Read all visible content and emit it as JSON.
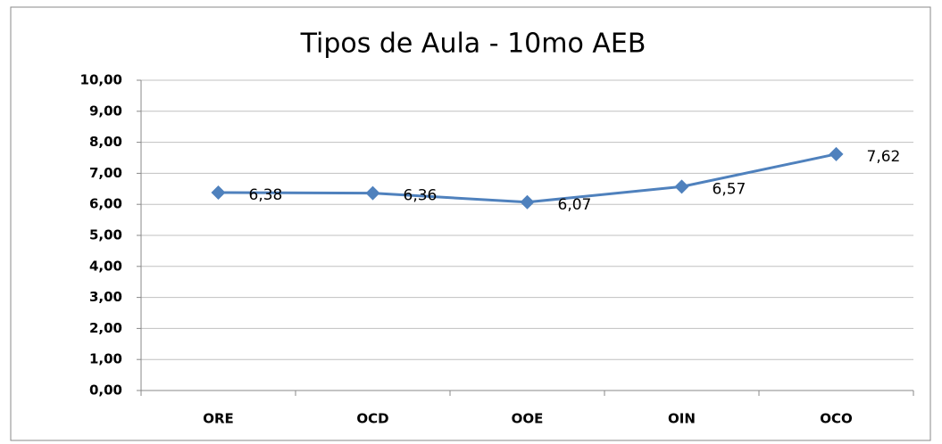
{
  "chart_data": {
    "type": "line",
    "title": "Tipos de Aula - 10mo AEB",
    "categories": [
      "ORE",
      "OCD",
      "OOE",
      "OIN",
      "OCO"
    ],
    "series": [
      {
        "name": "Tipos de Aula - 10mo AEB",
        "color": "#4f81bd",
        "values": [
          6.38,
          6.36,
          6.07,
          6.57,
          7.62
        ],
        "value_labels": [
          "6,38",
          "6,36",
          "6,07",
          "6,57",
          "7,62"
        ]
      }
    ],
    "ylim": [
      0,
      10
    ],
    "yticks": [
      {
        "value": 0,
        "label": "0,00"
      },
      {
        "value": 1,
        "label": "1,00"
      },
      {
        "value": 2,
        "label": "2,00"
      },
      {
        "value": 3,
        "label": "3,00"
      },
      {
        "value": 4,
        "label": "4,00"
      },
      {
        "value": 5,
        "label": "5,00"
      },
      {
        "value": 6,
        "label": "6,00"
      },
      {
        "value": 7,
        "label": "7,00"
      },
      {
        "value": 8,
        "label": "8,00"
      },
      {
        "value": 9,
        "label": "9,00"
      },
      {
        "value": 10,
        "label": "10,00"
      }
    ],
    "grid": true
  }
}
